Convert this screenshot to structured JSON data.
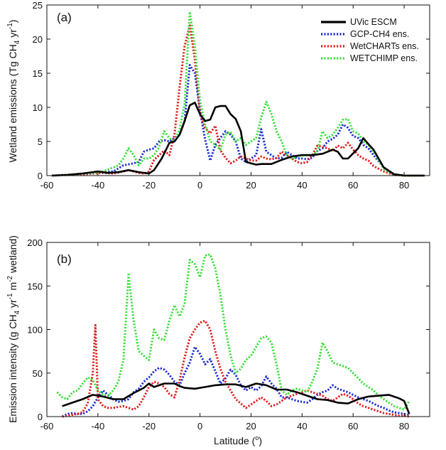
{
  "chart_data": [
    {
      "type": "line",
      "panel_label": "(a)",
      "xlabel": "",
      "ylabel": "Wetland emissions (Tg CH4 yr-1)",
      "ylabel_parts": [
        "Wetland emissions (Tg CH",
        "4",
        " yr",
        "-1",
        ")"
      ],
      "xlim": [
        -60,
        90
      ],
      "ylim": [
        0,
        25
      ],
      "xticks": [
        "-60",
        "-40",
        "-20",
        "0",
        "20",
        "40",
        "60",
        "80"
      ],
      "yticks": [
        "0",
        "5",
        "10",
        "15",
        "20",
        "25"
      ],
      "legend_position": "top-right",
      "series": [
        {
          "name": "UVic ESCM",
          "color": "#000000",
          "style": "solid",
          "x": [
            -58,
            -52,
            -46,
            -42,
            -40,
            -36,
            -32,
            -28,
            -24,
            -20,
            -18,
            -15,
            -12,
            -10,
            -8,
            -6,
            -4,
            -2,
            0,
            2,
            4,
            6,
            8,
            10,
            12,
            14,
            16,
            18,
            20,
            22,
            24,
            28,
            32,
            36,
            40,
            44,
            48,
            52,
            54,
            56,
            58,
            62,
            64,
            66,
            68,
            72,
            76,
            80,
            84,
            88
          ],
          "y": [
            0,
            0.1,
            0.3,
            0.5,
            0.6,
            0.4,
            0.5,
            0.8,
            0.5,
            0.3,
            0.8,
            2.5,
            4.8,
            5,
            6,
            8,
            10.3,
            10.7,
            9,
            8,
            8.2,
            10,
            10.2,
            10.2,
            9,
            8.3,
            6.5,
            2,
            1.8,
            1.6,
            1.7,
            1.7,
            2.3,
            2.8,
            3,
            3,
            3.2,
            3.8,
            3.5,
            2.5,
            2.5,
            4,
            5.5,
            4.6,
            3.8,
            1.2,
            0.2,
            0,
            0,
            0
          ]
        },
        {
          "name": "GCP-CH4 ens.",
          "color": "#1f2fd0",
          "style": "dotted",
          "x": [
            -58,
            -52,
            -46,
            -42,
            -38,
            -34,
            -30,
            -26,
            -24,
            -22,
            -20,
            -18,
            -16,
            -14,
            -12,
            -10,
            -8,
            -6,
            -4,
            -2,
            0,
            2,
            4,
            6,
            8,
            10,
            12,
            14,
            16,
            18,
            20,
            22,
            24,
            26,
            28,
            30,
            32,
            34,
            36,
            38,
            40,
            42,
            44,
            46,
            48,
            50,
            52,
            54,
            56,
            58,
            60,
            62,
            64,
            66,
            68,
            72,
            76,
            80,
            84,
            88
          ],
          "y": [
            0,
            0.1,
            0.2,
            0.3,
            0.5,
            0.6,
            1.5,
            1.8,
            2,
            3.5,
            3.8,
            4,
            5,
            5.2,
            5,
            5.5,
            6,
            8,
            16.2,
            15,
            9.5,
            5.3,
            2.2,
            4.5,
            5.5,
            6.5,
            6,
            5,
            2.5,
            2,
            2.5,
            3,
            6.8,
            3.5,
            3,
            2.5,
            2.6,
            3.5,
            3,
            2.5,
            2.5,
            2.4,
            2.6,
            3.6,
            4,
            5,
            5.4,
            6,
            7.5,
            7,
            5.8,
            5.5,
            4.5,
            4,
            3,
            1.2,
            0.2,
            0,
            0,
            0
          ]
        },
        {
          "name": "WetCHARTs ens.",
          "color": "#e02020",
          "style": "dotted",
          "x": [
            -58,
            -52,
            -46,
            -42,
            -38,
            -34,
            -30,
            -28,
            -26,
            -24,
            -22,
            -20,
            -18,
            -16,
            -14,
            -12,
            -10,
            -8,
            -6,
            -4,
            -2,
            0,
            2,
            4,
            6,
            8,
            10,
            12,
            14,
            16,
            18,
            20,
            22,
            24,
            26,
            28,
            30,
            32,
            34,
            36,
            38,
            40,
            42,
            44,
            46,
            48,
            50,
            52,
            54,
            56,
            58,
            60,
            62,
            64,
            66,
            68,
            72,
            76,
            80,
            84,
            88
          ],
          "y": [
            0,
            0.1,
            0.2,
            0.3,
            0.4,
            0.3,
            0.6,
            0.8,
            0.6,
            0.4,
            0.3,
            0.6,
            2.3,
            3,
            3.7,
            3,
            6,
            13,
            19,
            22,
            17,
            9,
            7,
            6.2,
            7.3,
            3.7,
            2.6,
            1.8,
            2.2,
            2.8,
            2.5,
            2.2,
            2.2,
            2.8,
            2.5,
            2.4,
            2.6,
            3.5,
            3,
            2.5,
            2,
            1.8,
            2,
            3,
            4.4,
            4.2,
            4,
            3.6,
            4.4,
            4,
            4.8,
            3.8,
            3,
            2.5,
            2.2,
            1.4,
            0.6,
            0.1,
            0,
            0,
            0
          ]
        },
        {
          "name": "WETCHIMP ens.",
          "color": "#3ce03c",
          "style": "dotted",
          "x": [
            -58,
            -52,
            -46,
            -42,
            -38,
            -34,
            -32,
            -30,
            -28,
            -26,
            -24,
            -22,
            -20,
            -18,
            -16,
            -14,
            -12,
            -10,
            -8,
            -6,
            -4,
            -2,
            0,
            2,
            4,
            6,
            8,
            10,
            12,
            14,
            16,
            18,
            20,
            22,
            24,
            26,
            28,
            30,
            32,
            34,
            36,
            38,
            40,
            42,
            44,
            46,
            48,
            50,
            52,
            54,
            56,
            58,
            60,
            62,
            64,
            66,
            68,
            72,
            76,
            80,
            84,
            88
          ],
          "y": [
            0,
            0.1,
            0.3,
            0.4,
            0.6,
            1.2,
            1.5,
            2.5,
            4,
            3,
            1.5,
            2.5,
            2.5,
            3,
            4.2,
            6.5,
            5.5,
            5,
            6.8,
            10.5,
            24,
            19,
            11,
            7.5,
            5,
            4.5,
            3.8,
            6,
            6.4,
            5,
            5.5,
            4.5,
            5,
            5.5,
            8.5,
            10.8,
            9,
            6.5,
            5,
            3,
            2.5,
            2.8,
            3,
            3,
            3,
            3.5,
            6.5,
            5.5,
            6,
            7,
            8.2,
            8.3,
            6.5,
            6.2,
            5,
            4.5,
            3.5,
            1,
            0.1,
            0,
            0,
            0
          ]
        }
      ]
    },
    {
      "type": "line",
      "panel_label": "(b)",
      "xlabel": "Latitude (o)",
      "xlabel_parts": [
        "Latitude (",
        "o",
        ")"
      ],
      "ylabel": "Emission intensity (g CH4 yr-1 m-2 wetland)",
      "ylabel_parts": [
        "Emission intensity (g CH",
        "4",
        " yr",
        "-1",
        " m",
        "-2",
        " wetland)"
      ],
      "xlim": [
        -60,
        90
      ],
      "ylim": [
        0,
        200
      ],
      "xticks": [
        "-60",
        "-40",
        "-20",
        "0",
        "20",
        "40",
        "60",
        "80"
      ],
      "yticks": [
        "0",
        "50",
        "100",
        "150",
        "200"
      ],
      "series": [
        {
          "name": "UVic ESCM",
          "color": "#000000",
          "style": "solid",
          "x": [
            -54,
            -50,
            -46,
            -42,
            -38,
            -34,
            -30,
            -26,
            -22,
            -20,
            -18,
            -14,
            -10,
            -8,
            -6,
            -2,
            2,
            6,
            10,
            14,
            18,
            22,
            26,
            30,
            34,
            38,
            42,
            46,
            50,
            54,
            58,
            62,
            66,
            70,
            74,
            78,
            80,
            82
          ],
          "y": [
            12,
            16,
            20,
            25,
            23,
            20,
            20,
            27,
            33,
            38,
            34,
            38,
            38,
            35,
            33,
            32,
            34,
            36,
            37,
            37,
            34,
            38,
            36,
            31,
            31,
            28,
            24,
            20,
            19,
            16,
            15,
            20,
            23,
            24,
            25,
            21,
            18,
            3
          ]
        },
        {
          "name": "GCP-CH4 ens.",
          "color": "#1f2fd0",
          "style": "dotted",
          "x": [
            -54,
            -52,
            -50,
            -48,
            -46,
            -44,
            -42,
            -40,
            -38,
            -36,
            -34,
            -32,
            -30,
            -28,
            -26,
            -24,
            -22,
            -20,
            -18,
            -16,
            -14,
            -12,
            -10,
            -8,
            -6,
            -4,
            -2,
            0,
            2,
            4,
            6,
            8,
            10,
            12,
            14,
            16,
            18,
            20,
            22,
            24,
            26,
            28,
            30,
            32,
            34,
            36,
            38,
            40,
            42,
            44,
            46,
            48,
            50,
            52,
            54,
            56,
            58,
            60,
            62,
            64,
            66,
            68,
            70,
            72,
            74,
            76,
            78,
            80,
            82
          ],
          "y": [
            0,
            3,
            4,
            3,
            3,
            6,
            12,
            22,
            30,
            25,
            20,
            17,
            18,
            20,
            28,
            32,
            40,
            45,
            52,
            56,
            54,
            48,
            40,
            36,
            50,
            62,
            80,
            72,
            60,
            66,
            52,
            38,
            44,
            54,
            48,
            36,
            30,
            34,
            30,
            35,
            46,
            38,
            32,
            22,
            22,
            20,
            18,
            17,
            16,
            20,
            25,
            28,
            30,
            36,
            32,
            30,
            28,
            25,
            22,
            20,
            18,
            15,
            12,
            10,
            7,
            5,
            4,
            3,
            2
          ]
        },
        {
          "name": "WetCHARTs ens.",
          "color": "#e02020",
          "style": "dotted",
          "x": [
            -54,
            -52,
            -50,
            -48,
            -46,
            -44,
            -42,
            -41,
            -40,
            -38,
            -36,
            -34,
            -32,
            -30,
            -28,
            -26,
            -24,
            -22,
            -20,
            -18,
            -16,
            -14,
            -12,
            -10,
            -8,
            -6,
            -4,
            -2,
            0,
            2,
            4,
            6,
            8,
            10,
            12,
            14,
            16,
            18,
            20,
            22,
            24,
            26,
            28,
            30,
            32,
            34,
            36,
            38,
            40,
            42,
            44,
            46,
            48,
            50,
            52,
            54,
            56,
            58,
            60,
            62,
            64,
            66,
            68,
            70,
            72,
            74,
            76,
            78,
            80,
            82
          ],
          "y": [
            0,
            1,
            2,
            3,
            5,
            15,
            50,
            105,
            20,
            12,
            10,
            10,
            11,
            12,
            10,
            8,
            12,
            22,
            34,
            40,
            38,
            34,
            26,
            22,
            42,
            68,
            90,
            100,
            108,
            110,
            100,
            75,
            55,
            40,
            30,
            20,
            15,
            10,
            14,
            18,
            22,
            18,
            12,
            14,
            18,
            22,
            24,
            26,
            28,
            30,
            28,
            26,
            24,
            20,
            18,
            22,
            26,
            24,
            20,
            15,
            12,
            10,
            8,
            6,
            4,
            3,
            2,
            1,
            1,
            0
          ]
        },
        {
          "name": "WETCHIMP ens.",
          "color": "#3ce03c",
          "style": "dotted",
          "x": [
            -56,
            -54,
            -52,
            -50,
            -48,
            -46,
            -44,
            -42,
            -40,
            -38,
            -36,
            -34,
            -32,
            -30,
            -28,
            -26,
            -24,
            -22,
            -20,
            -18,
            -16,
            -14,
            -12,
            -10,
            -8,
            -6,
            -4,
            -2,
            0,
            2,
            4,
            6,
            8,
            10,
            12,
            14,
            16,
            18,
            20,
            22,
            24,
            26,
            28,
            30,
            32,
            34,
            36,
            38,
            40,
            42,
            44,
            46,
            48,
            50,
            52,
            54,
            56,
            58,
            60,
            62,
            64,
            66,
            68,
            70,
            72,
            74,
            76,
            78,
            80,
            82
          ],
          "y": [
            28,
            22,
            20,
            28,
            30,
            38,
            45,
            42,
            30,
            25,
            24,
            30,
            40,
            65,
            163,
            110,
            75,
            70,
            65,
            100,
            90,
            88,
            110,
            128,
            115,
            130,
            180,
            175,
            160,
            185,
            186,
            170,
            140,
            100,
            70,
            50,
            55,
            65,
            70,
            80,
            90,
            92,
            85,
            60,
            30,
            25,
            30,
            32,
            30,
            28,
            40,
            55,
            85,
            75,
            62,
            60,
            58,
            56,
            50,
            44,
            38,
            34,
            30,
            24,
            20,
            16,
            12,
            10,
            8,
            18
          ]
        }
      ]
    }
  ]
}
